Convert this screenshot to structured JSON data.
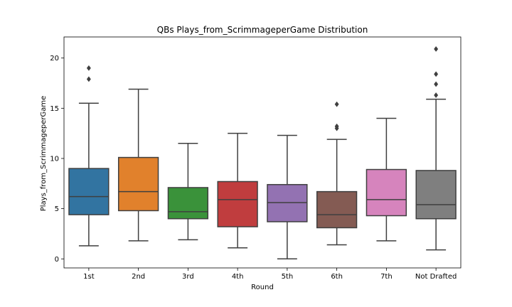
{
  "chart_data": {
    "type": "box",
    "title": "QBs Plays_from_ScrimmageperGame Distribution",
    "xlabel": "Round",
    "ylabel": "Plays_from_ScrimmageperGame",
    "ylim": [
      -0.9,
      22.1
    ],
    "yticks": [
      0,
      5,
      10,
      15,
      20
    ],
    "grid": false,
    "categories": [
      "1st",
      "2nd",
      "3rd",
      "4th",
      "5th",
      "6th",
      "7th",
      "Not Drafted"
    ],
    "colors": [
      "#3274a1",
      "#e1812c",
      "#3a923a",
      "#c03d3e",
      "#9372b2",
      "#845b53",
      "#d684bd",
      "#7f7f7f"
    ],
    "boxes": [
      {
        "whisker_low": 1.3,
        "q1": 4.4,
        "median": 6.2,
        "q3": 9.0,
        "whisker_high": 15.5,
        "outliers": [
          17.9,
          19.0
        ]
      },
      {
        "whisker_low": 1.8,
        "q1": 4.8,
        "median": 6.7,
        "q3": 10.1,
        "whisker_high": 16.9,
        "outliers": []
      },
      {
        "whisker_low": 1.9,
        "q1": 4.0,
        "median": 4.7,
        "q3": 7.1,
        "whisker_high": 11.5,
        "outliers": []
      },
      {
        "whisker_low": 1.1,
        "q1": 3.2,
        "median": 5.9,
        "q3": 7.7,
        "whisker_high": 12.5,
        "outliers": []
      },
      {
        "whisker_low": 0.0,
        "q1": 3.7,
        "median": 5.6,
        "q3": 7.4,
        "whisker_high": 12.3,
        "outliers": []
      },
      {
        "whisker_low": 1.4,
        "q1": 3.1,
        "median": 4.4,
        "q3": 6.7,
        "whisker_high": 11.9,
        "outliers": [
          13.0,
          13.2,
          15.4
        ]
      },
      {
        "whisker_low": 1.8,
        "q1": 4.3,
        "median": 5.9,
        "q3": 8.9,
        "whisker_high": 14.0,
        "outliers": []
      },
      {
        "whisker_low": 0.9,
        "q1": 4.0,
        "median": 5.4,
        "q3": 8.8,
        "whisker_high": 15.9,
        "outliers": [
          16.3,
          17.4,
          18.4,
          20.9
        ]
      }
    ]
  }
}
